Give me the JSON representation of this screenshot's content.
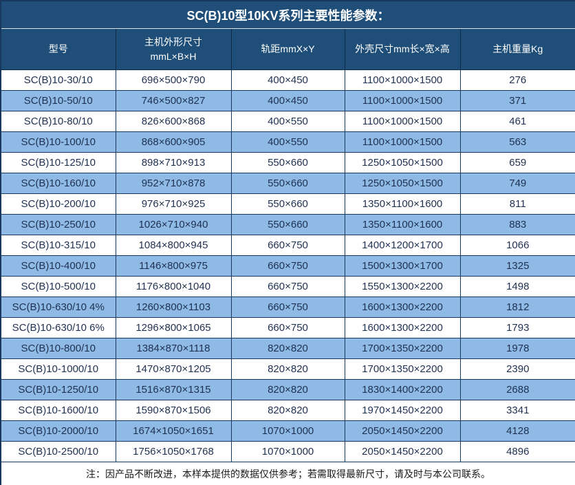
{
  "title": "SC(B)10型10KV系列主要性能参数：",
  "table": {
    "header": {
      "col1": "型号",
      "col2_line1": "主机外形尺寸",
      "col2_line2": "mmL×B×H",
      "col3": "轨距mmX×Y",
      "col4": "外壳尺寸mm长×宽×高",
      "col5": "主机重量Kg"
    },
    "rows": [
      [
        "SC(B)10-30/10",
        "696×500×790",
        "400×450",
        "1100×1000×1500",
        "276"
      ],
      [
        "SC(B)10-50/10",
        "746×500×827",
        "400×450",
        "1100×1000×1500",
        "371"
      ],
      [
        "SC(B)10-80/10",
        "826×600×868",
        "400×550",
        "1100×1000×1500",
        "461"
      ],
      [
        "SC(B)10-100/10",
        "868×600×905",
        "400×550",
        "1100×1000×1500",
        "563"
      ],
      [
        "SC(B)10-125/10",
        "898×710×913",
        "550×660",
        "1250×1050×1500",
        "659"
      ],
      [
        "SC(B)10-160/10",
        "952×710×878",
        "550×660",
        "1250×1050×1500",
        "749"
      ],
      [
        "SC(B)10-200/10",
        "976×710×925",
        "550×660",
        "1350×1100×1600",
        "811"
      ],
      [
        "SC(B)10-250/10",
        "1026×710×940",
        "550×660",
        "1350×1100×1600",
        "883"
      ],
      [
        "SC(B)10-315/10",
        "1084×800×945",
        "660×750",
        "1400×1200×1700",
        "1066"
      ],
      [
        "SC(B)10-400/10",
        "1146×800×975",
        "660×750",
        "1500×1300×1700",
        "1325"
      ],
      [
        "SC(B)10-500/10",
        "1176×800×1040",
        "660×750",
        "1550×1300×2200",
        "1498"
      ],
      [
        "SC(B)10-630/10 4%",
        "1260×800×1103",
        "660×750",
        "1600×1300×2200",
        "1812"
      ],
      [
        "SC(B)10-630/10 6%",
        "1296×800×1065",
        "660×750",
        "1600×1300×2200",
        "1793"
      ],
      [
        "SC(B)10-800/10",
        "1384×870×1118",
        "820×820",
        "1700×1350×2200",
        "1978"
      ],
      [
        "SC(B)10-1000/10",
        "1470×870×1205",
        "820×820",
        "1700×1350×2200",
        "2390"
      ],
      [
        "SC(B)10-1250/10",
        "1516×870×1315",
        "820×820",
        "1830×1400×2200",
        "2688"
      ],
      [
        "SC(B)10-1600/10",
        "1590×870×1506",
        "820×820",
        "1970×1450×2200",
        "3341"
      ],
      [
        "SC(B)10-2000/10",
        "1674×1050×1651",
        "1070×1000",
        "2050×1450×2200",
        "4128"
      ],
      [
        "SC(B)10-2500/10",
        "1756×1050×1768",
        "1070×1000",
        "2050×1450×2200",
        "4896"
      ]
    ],
    "cell_names": [
      "cell-model",
      "cell-host-dimensions",
      "cell-rail-gauge",
      "cell-shell-dimensions",
      "cell-weight"
    ],
    "note": "注：因产品不断改进，本样本提供的数据仅供参考；若需取得最新尺寸，请及时与本公司联系。"
  },
  "colors": {
    "header_bg": "#1F4E79",
    "header_text": "#FFFFFF",
    "row_bg": "#FFFFFF",
    "row_alt_bg": "#8FBAE6",
    "body_text": "#1F3050",
    "border": "#17375E"
  }
}
